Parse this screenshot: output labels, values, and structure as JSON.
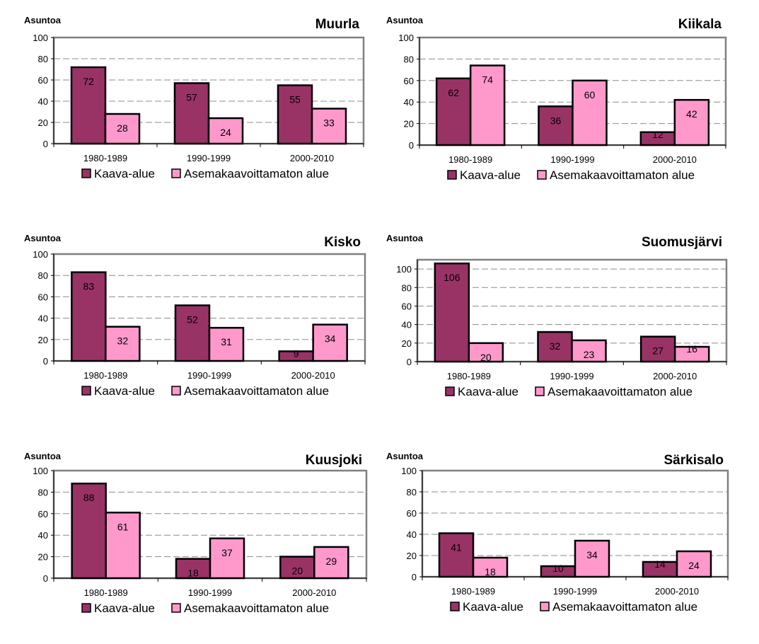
{
  "colors": {
    "kaava": "#993366",
    "asemakaavoittamaton": "#ff99cc",
    "gridline": "#8c8c8c",
    "frame": "#808080",
    "bar_outline": "#000000"
  },
  "legend": {
    "series": [
      "Kaava-alue",
      "Asemakaavoittamaton alue"
    ]
  },
  "chart_data": [
    {
      "type": "bar",
      "title": "Muurla",
      "ylabel": "Asuntoa",
      "xlabel": "",
      "ylim": [
        0,
        100
      ],
      "yticks": [
        0,
        20,
        40,
        60,
        80,
        100
      ],
      "grid": true,
      "legend_position": "bottom",
      "categories": [
        "1980-1989",
        "1990-1999",
        "2000-2010"
      ],
      "series": [
        {
          "name": "Kaava-alue",
          "values": [
            72,
            57,
            55
          ]
        },
        {
          "name": "Asemakaavoittamaton alue",
          "values": [
            28,
            24,
            33
          ]
        }
      ]
    },
    {
      "type": "bar",
      "title": "Kiikala",
      "ylabel": "Asuntoa",
      "xlabel": "",
      "ylim": [
        0,
        100
      ],
      "yticks": [
        0,
        20,
        40,
        60,
        80,
        100
      ],
      "grid": true,
      "legend_position": "bottom",
      "categories": [
        "1980-1989",
        "1990-1999",
        "2000-2010"
      ],
      "series": [
        {
          "name": "Kaava-alue",
          "values": [
            62,
            36,
            12
          ]
        },
        {
          "name": "Asemakaavoittamaton alue",
          "values": [
            74,
            60,
            42
          ]
        }
      ]
    },
    {
      "type": "bar",
      "title": "Kisko",
      "ylabel": "Asuntoa",
      "xlabel": "",
      "ylim": [
        0,
        100
      ],
      "yticks": [
        0,
        20,
        40,
        60,
        80,
        100
      ],
      "grid": true,
      "legend_position": "bottom",
      "categories": [
        "1980-1989",
        "1990-1999",
        "2000-2010"
      ],
      "series": [
        {
          "name": "Kaava-alue",
          "values": [
            83,
            52,
            9
          ]
        },
        {
          "name": "Asemakaavoittamaton alue",
          "values": [
            32,
            31,
            34
          ]
        }
      ]
    },
    {
      "type": "bar",
      "title": "Suomusjärvi",
      "ylabel": "Asuntoa",
      "xlabel": "",
      "ylim": [
        0,
        110
      ],
      "yticks": [
        0,
        20,
        40,
        60,
        80,
        100
      ],
      "grid": true,
      "legend_position": "bottom",
      "categories": [
        "1980-1989",
        "1990-1999",
        "2000-2010"
      ],
      "series": [
        {
          "name": "Kaava-alue",
          "values": [
            106,
            32,
            27
          ]
        },
        {
          "name": "Asemakaavoittamaton alue",
          "values": [
            20,
            23,
            16
          ]
        }
      ]
    },
    {
      "type": "bar",
      "title": "Kuusjoki",
      "ylabel": "Asuntoa",
      "xlabel": "",
      "ylim": [
        0,
        100
      ],
      "yticks": [
        0,
        20,
        40,
        60,
        80,
        100
      ],
      "grid": true,
      "legend_position": "bottom",
      "categories": [
        "1980-1989",
        "1990-1999",
        "2000-2010"
      ],
      "series": [
        {
          "name": "Kaava-alue",
          "values": [
            88,
            18,
            20
          ]
        },
        {
          "name": "Asemakaavoittamaton alue",
          "values": [
            61,
            37,
            29
          ]
        }
      ]
    },
    {
      "type": "bar",
      "title": "Särkisalo",
      "ylabel": "Asuntoa",
      "xlabel": "",
      "ylim": [
        0,
        100
      ],
      "yticks": [
        0,
        20,
        40,
        60,
        80,
        100
      ],
      "grid": true,
      "legend_position": "bottom",
      "categories": [
        "1980-1989",
        "1990-1999",
        "2000-2010"
      ],
      "series": [
        {
          "name": "Kaava-alue",
          "values": [
            41,
            10,
            14
          ]
        },
        {
          "name": "Asemakaavoittamaton alue",
          "values": [
            18,
            34,
            24
          ]
        }
      ]
    }
  ]
}
